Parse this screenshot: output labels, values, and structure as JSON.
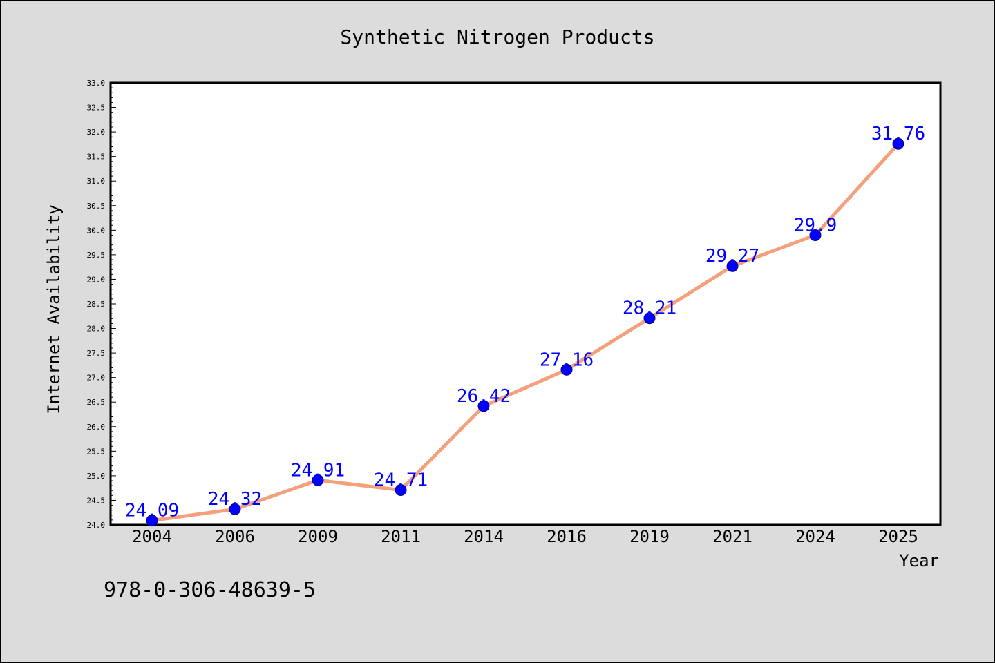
{
  "chart_data": {
    "type": "line",
    "title": "Synthetic Nitrogen Products",
    "xlabel": "Year",
    "ylabel": "Internet Availability",
    "categories": [
      "2004",
      "2006",
      "2009",
      "2011",
      "2014",
      "2016",
      "2019",
      "2021",
      "2024",
      "2025"
    ],
    "series": [
      {
        "values": [
          24.09,
          24.32,
          24.91,
          24.71,
          26.42,
          27.16,
          28.21,
          29.27,
          29.9,
          31.76
        ],
        "labels": [
          "24.09",
          "24.32",
          "24.91",
          "24.71",
          "26.42",
          "27.16",
          "28.21",
          "29.27",
          "29.9",
          "31.76"
        ]
      }
    ],
    "ylim": [
      24.0,
      33.0
    ],
    "yticks": [
      "24.0",
      "24.5",
      "25.0",
      "25.5",
      "26.0",
      "26.5",
      "27.0",
      "27.5",
      "28.0",
      "28.5",
      "29.0",
      "29.5",
      "30.0",
      "30.5",
      "31.0",
      "31.5",
      "32.0",
      "32.5",
      "33.0"
    ],
    "grid": false,
    "legend": "none",
    "colors": {
      "line": "#f4a07c",
      "marker": "#0000ff",
      "label": "#0000ff",
      "background": "#dcdcdc",
      "plot_background": "#ffffff"
    }
  },
  "annotation": {
    "isbn": "978-0-306-48639-5"
  }
}
